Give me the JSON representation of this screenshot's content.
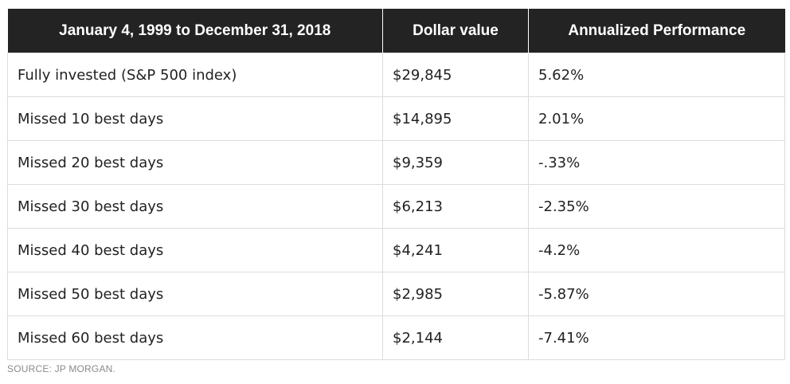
{
  "chart_data": {
    "type": "table",
    "columns": [
      "January 4, 1999 to December 31, 2018",
      "Dollar value",
      "Annualized Performance"
    ],
    "rows": [
      [
        "Fully invested (S&P 500 index)",
        "$29,845",
        "5.62%"
      ],
      [
        "Missed 10 best days",
        "$14,895",
        "2.01%"
      ],
      [
        "Missed 20 best days",
        "$9,359",
        "-.33%"
      ],
      [
        "Missed 30 best days",
        "$6,213",
        "-2.35%"
      ],
      [
        "Missed 40 best days",
        "$4,241",
        "-4.2%"
      ],
      [
        "Missed 50 best days",
        "$2,985",
        "-5.87%"
      ],
      [
        "Missed 60 best days",
        "$2,144",
        "-7.41%"
      ]
    ],
    "source": "SOURCE: JP MORGAN."
  },
  "colors": {
    "header_background": "#232323",
    "header_text": "#ffffff",
    "body_text": "#222222",
    "border": "#dcdcdc",
    "source_text": "#8a8a8a"
  }
}
